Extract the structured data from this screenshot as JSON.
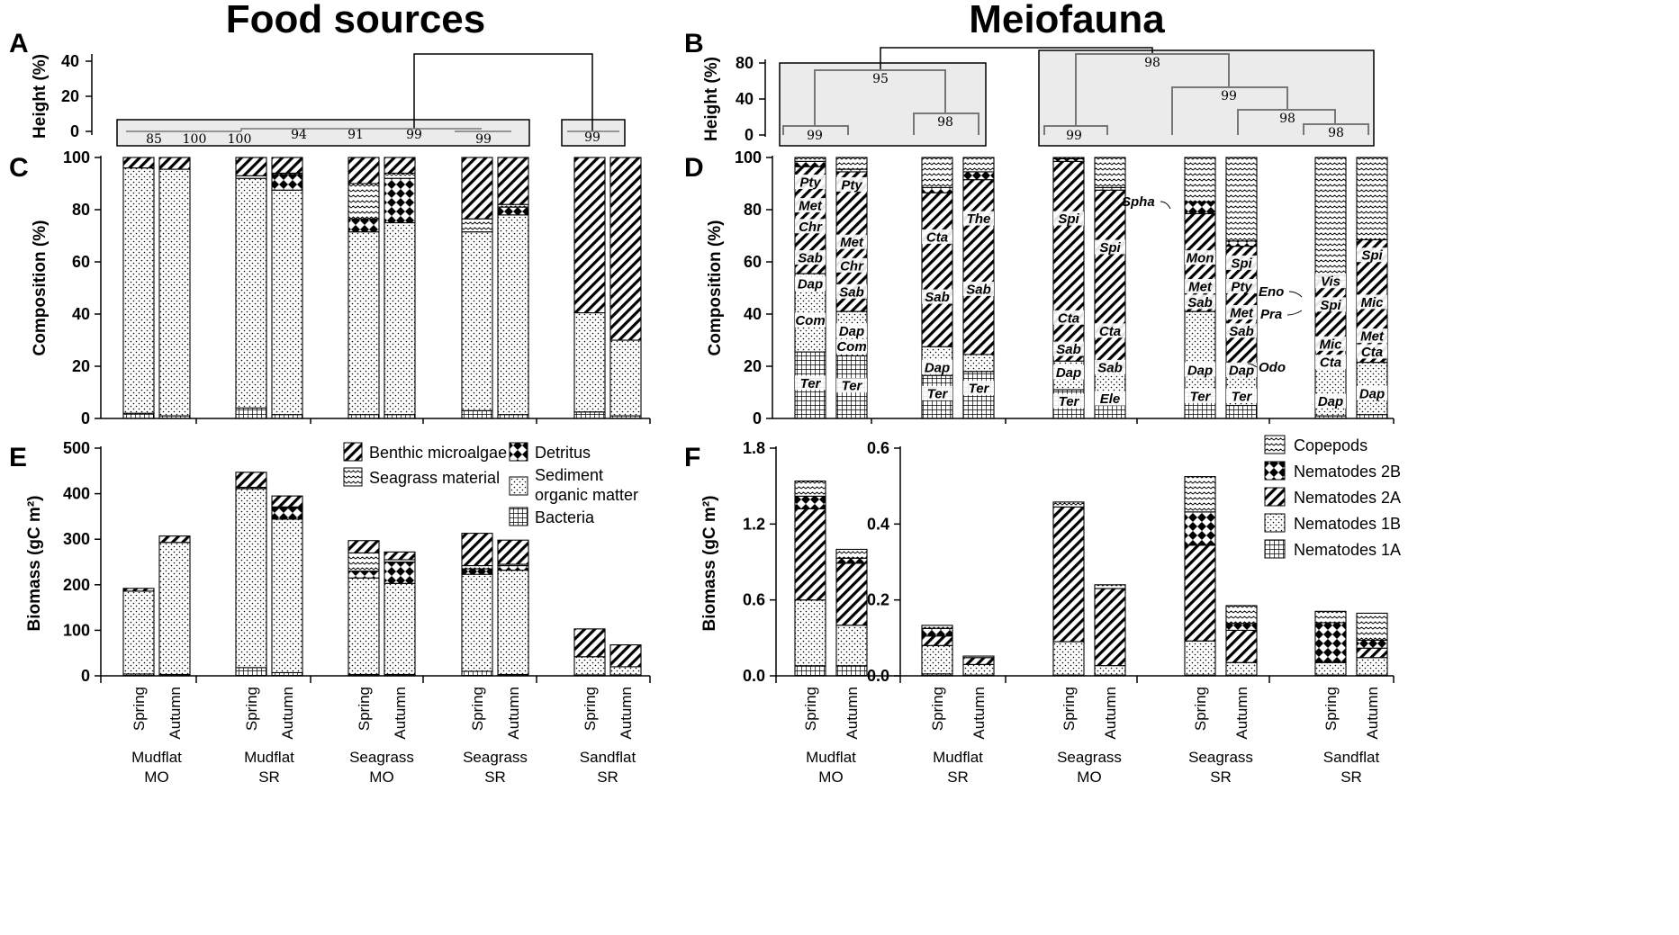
{
  "titles": {
    "left": "Food sources",
    "right": "Meiofauna"
  },
  "panel_labels": [
    "A",
    "B",
    "C",
    "D",
    "E",
    "F"
  ],
  "colors": {
    "ink": "#000000",
    "box_fill": "#ebebeb",
    "tree": "#777777"
  },
  "categories": [
    {
      "season": "Spring",
      "site": "Mudflat",
      "region": "MO"
    },
    {
      "season": "Autumn",
      "site": "Mudflat",
      "region": "MO"
    },
    {
      "season": "Spring",
      "site": "Mudflat",
      "region": "SR"
    },
    {
      "season": "Autumn",
      "site": "Mudflat",
      "region": "SR"
    },
    {
      "season": "Spring",
      "site": "Seagrass",
      "region": "MO"
    },
    {
      "season": "Autumn",
      "site": "Seagrass",
      "region": "MO"
    },
    {
      "season": "Spring",
      "site": "Seagrass",
      "region": "SR"
    },
    {
      "season": "Autumn",
      "site": "Seagrass",
      "region": "SR"
    },
    {
      "season": "Spring",
      "site": "Sandflat",
      "region": "SR"
    },
    {
      "season": "Autumn",
      "site": "Sandflat",
      "region": "SR"
    }
  ],
  "chart_data": [
    {
      "panel": "A",
      "type": "dendrogram",
      "ylabel": "Height (%)",
      "yticks": [
        0,
        20,
        40
      ],
      "ylim": [
        0,
        48
      ],
      "node_labels": [
        "85",
        "100",
        "100",
        "94",
        "91",
        "99",
        "99",
        "99"
      ]
    },
    {
      "panel": "B",
      "type": "dendrogram",
      "ylabel": "Height (%)",
      "yticks": [
        0,
        40,
        80
      ],
      "ylim": [
        0,
        96
      ],
      "node_labels": [
        "99",
        "95",
        "98",
        "98",
        "99",
        "99",
        "98",
        "98"
      ]
    },
    {
      "panel": "C",
      "type": "bar",
      "stacked": true,
      "ylabel": "Composition (%)",
      "ylim": [
        0,
        100
      ],
      "yticks": [
        0,
        20,
        40,
        60,
        80,
        100
      ],
      "series": [
        {
          "name": "Bacteria",
          "values": [
            2,
            1,
            4,
            1.5,
            1.5,
            1.5,
            3,
            1.5,
            2.5,
            1
          ]
        },
        {
          "name": "Sediment organic matter",
          "values": [
            94,
            94.5,
            88,
            86,
            70,
            73.5,
            68.5,
            76.5,
            38,
            29
          ]
        },
        {
          "name": "Detritus",
          "values": [
            0,
            0,
            0,
            6,
            5,
            17,
            0,
            3,
            0,
            0
          ]
        },
        {
          "name": "Seagrass material",
          "values": [
            0,
            0,
            1,
            0.5,
            13.5,
            2,
            5,
            1,
            0,
            0
          ]
        },
        {
          "name": "Benthic microalgae",
          "values": [
            4,
            4.5,
            7,
            6,
            10,
            6,
            23.5,
            18,
            59.5,
            70
          ]
        }
      ]
    },
    {
      "panel": "D",
      "type": "bar",
      "stacked": true,
      "ylabel": "Composition (%)",
      "ylim": [
        0,
        100
      ],
      "yticks": [
        0,
        20,
        40,
        60,
        80,
        100
      ],
      "series": [
        {
          "name": "Nematodes 1A",
          "values": [
            25.5,
            24,
            16.5,
            18,
            11,
            5,
            10,
            5,
            1,
            1.5
          ]
        },
        {
          "name": "Nematodes 1B",
          "values": [
            30,
            17,
            11,
            6.5,
            11,
            14.5,
            31,
            16,
            23,
            20
          ]
        },
        {
          "name": "Nematodes 2A",
          "values": [
            41,
            53.5,
            59,
            67,
            76.5,
            68,
            37.5,
            45,
            29,
            47
          ]
        },
        {
          "name": "Nematodes 2B",
          "values": [
            2,
            1,
            2,
            3,
            1,
            1,
            4.5,
            2,
            2,
            0
          ]
        },
        {
          "name": "Copepods",
          "values": [
            1.5,
            4.5,
            11.5,
            5.5,
            0.5,
            11.5,
            17,
            32,
            45,
            31.5
          ]
        }
      ],
      "segment_labels": [
        [
          "Ter",
          "Com",
          "Dap",
          "Sab",
          "Chr",
          "Met",
          "Pty"
        ],
        [
          "Ter",
          "Com",
          "Dap",
          "Sab",
          "Chr",
          "Met",
          "Pty"
        ],
        [
          "Ter",
          "Dap",
          "Sab",
          "Cta"
        ],
        [
          "Ter",
          "Sab",
          "The"
        ],
        [
          "Ter",
          "Dap",
          "Sab",
          "Cta",
          "Spi"
        ],
        [
          "Ele",
          "Sab",
          "Cta",
          "Spi"
        ],
        [
          "Ter",
          "Dap",
          "Sab",
          "Met",
          "Mon"
        ],
        [
          "Ter",
          "Dap",
          "Sab",
          "Met",
          "Pty",
          "Spi"
        ],
        [
          "Dap",
          "Cta",
          "Mic",
          "Spi",
          "Vis"
        ],
        [
          "Dap",
          "Cta",
          "Met",
          "Mic",
          "Spi"
        ]
      ],
      "callouts": [
        "Spha",
        "Eno",
        "Pra",
        "Odo"
      ]
    },
    {
      "panel": "E",
      "type": "bar",
      "stacked": true,
      "ylabel": "Biomass (gC m²)",
      "ylim": [
        0,
        500
      ],
      "yticks": [
        0,
        100,
        200,
        300,
        400,
        500
      ],
      "series": [
        {
          "name": "Bacteria",
          "values": [
            4,
            3,
            18,
            7,
            3,
            3,
            10,
            3,
            2,
            2
          ]
        },
        {
          "name": "Sediment organic matter",
          "values": [
            182,
            290,
            393,
            337,
            212,
            200,
            213,
            229,
            40,
            18
          ]
        },
        {
          "name": "Detritus",
          "values": [
            0,
            0,
            0,
            25,
            15,
            47,
            12,
            10,
            0,
            0
          ]
        },
        {
          "name": "Seagrass material",
          "values": [
            0,
            0,
            3,
            2,
            40,
            5,
            7,
            3,
            0,
            0
          ]
        },
        {
          "name": "Benthic microalgae",
          "values": [
            6,
            14,
            33,
            24,
            27,
            17,
            71,
            53,
            61,
            48
          ]
        }
      ],
      "legend": [
        "Benthic microalgae",
        "Detritus",
        "Seagrass material",
        "Sediment organic matter",
        "Bacteria"
      ]
    },
    {
      "panel": "F",
      "type": "bar",
      "stacked": true,
      "ylabel": "Biomass (gC m²)",
      "left_axis": {
        "ylim": [
          0,
          1.8
        ],
        "yticks": [
          "0.0",
          "0.6",
          "1.2",
          "1.8"
        ],
        "categories": [
          0,
          1
        ]
      },
      "right_axis": {
        "ylim": [
          0,
          0.6
        ],
        "yticks": [
          "0.0",
          "0.2",
          "0.4",
          "0.6"
        ],
        "categories": [
          2,
          3,
          4,
          5,
          6,
          7,
          8,
          9
        ]
      },
      "series": [
        {
          "name": "Nematodes 1A",
          "values": [
            0.08,
            0.08,
            0.005,
            0.002,
            0.002,
            0.002,
            0.002,
            0.002,
            0.002,
            0.002
          ]
        },
        {
          "name": "Nematodes 1B",
          "values": [
            0.52,
            0.32,
            0.075,
            0.028,
            0.088,
            0.025,
            0.09,
            0.033,
            0.033,
            0.046
          ]
        },
        {
          "name": "Nematodes 2A",
          "values": [
            0.72,
            0.49,
            0.025,
            0.018,
            0.355,
            0.203,
            0.252,
            0.085,
            0.0,
            0.025
          ]
        },
        {
          "name": "Nematodes 2B",
          "values": [
            0.1,
            0.04,
            0.02,
            0.0,
            0.0,
            0.0,
            0.088,
            0.018,
            0.105,
            0.021
          ]
        },
        {
          "name": "Copepods",
          "values": [
            0.12,
            0.07,
            0.008,
            0.004,
            0.013,
            0.01,
            0.093,
            0.047,
            0.03,
            0.071
          ]
        }
      ],
      "legend": [
        "Copepods",
        "Nematodes 2B",
        "Nematodes 2A",
        "Nematodes 1B",
        "Nematodes 1A"
      ]
    }
  ]
}
